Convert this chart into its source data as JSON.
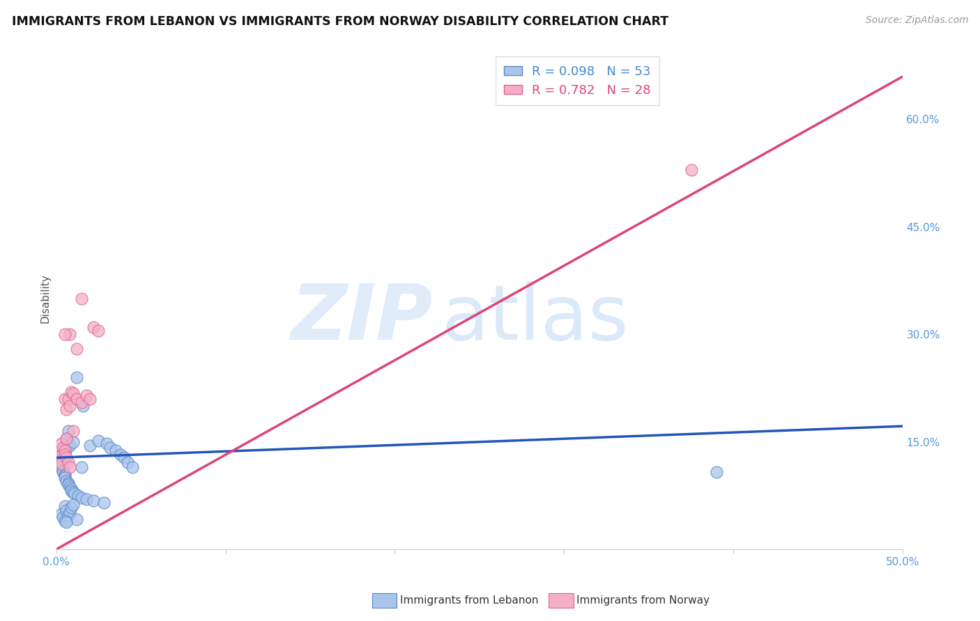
{
  "title": "IMMIGRANTS FROM LEBANON VS IMMIGRANTS FROM NORWAY DISABILITY CORRELATION CHART",
  "source": "Source: ZipAtlas.com",
  "ylabel": "Disability",
  "xlim": [
    0.0,
    0.5
  ],
  "ylim": [
    0.0,
    0.7
  ],
  "xticks": [
    0.0,
    0.1,
    0.2,
    0.3,
    0.4,
    0.5
  ],
  "xticklabels": [
    "0.0%",
    "",
    "",
    "",
    "",
    "50.0%"
  ],
  "yticks_right": [
    0.15,
    0.3,
    0.45,
    0.6
  ],
  "yticklabels_right": [
    "15.0%",
    "30.0%",
    "45.0%",
    "60.0%"
  ],
  "grid_color": "#c8c8c8",
  "background_color": "#ffffff",
  "lebanon_color": "#aac4ea",
  "norway_color": "#f4afc5",
  "lebanon_edge_color": "#5588cc",
  "norway_edge_color": "#e06090",
  "lebanon_line_color": "#2255bb",
  "norway_line_color": "#dd4477",
  "lebanon_R": 0.098,
  "lebanon_N": 53,
  "norway_R": 0.782,
  "norway_N": 28,
  "leb_line_x0": 0.0,
  "leb_line_y0": 0.128,
  "leb_line_x1": 0.5,
  "leb_line_y1": 0.172,
  "nor_line_x0": 0.0,
  "nor_line_y0": 0.0,
  "nor_line_x1": 0.5,
  "nor_line_y1": 0.66,
  "lebanon_scatter_x": [
    0.002,
    0.003,
    0.003,
    0.003,
    0.004,
    0.004,
    0.004,
    0.005,
    0.005,
    0.005,
    0.005,
    0.006,
    0.006,
    0.006,
    0.007,
    0.007,
    0.007,
    0.008,
    0.008,
    0.009,
    0.009,
    0.01,
    0.01,
    0.011,
    0.012,
    0.013,
    0.015,
    0.016,
    0.018,
    0.02,
    0.022,
    0.025,
    0.028,
    0.03,
    0.032,
    0.035,
    0.038,
    0.04,
    0.042,
    0.045,
    0.003,
    0.004,
    0.005,
    0.006,
    0.007,
    0.008,
    0.009,
    0.01,
    0.012,
    0.015,
    0.39,
    0.005,
    0.006
  ],
  "lebanon_scatter_y": [
    0.13,
    0.125,
    0.12,
    0.115,
    0.11,
    0.108,
    0.135,
    0.105,
    0.102,
    0.1,
    0.142,
    0.095,
    0.14,
    0.155,
    0.092,
    0.09,
    0.165,
    0.088,
    0.145,
    0.085,
    0.082,
    0.08,
    0.15,
    0.078,
    0.24,
    0.075,
    0.072,
    0.2,
    0.07,
    0.145,
    0.068,
    0.152,
    0.065,
    0.148,
    0.142,
    0.138,
    0.132,
    0.128,
    0.122,
    0.115,
    0.05,
    0.045,
    0.06,
    0.055,
    0.048,
    0.052,
    0.058,
    0.062,
    0.042,
    0.115,
    0.108,
    0.04,
    0.038
  ],
  "norway_scatter_x": [
    0.002,
    0.003,
    0.003,
    0.004,
    0.005,
    0.005,
    0.005,
    0.006,
    0.006,
    0.007,
    0.007,
    0.008,
    0.008,
    0.009,
    0.01,
    0.01,
    0.012,
    0.015,
    0.018,
    0.02,
    0.022,
    0.025,
    0.015,
    0.012,
    0.008,
    0.005,
    0.375,
    0.006
  ],
  "norway_scatter_y": [
    0.13,
    0.12,
    0.148,
    0.142,
    0.138,
    0.132,
    0.21,
    0.128,
    0.195,
    0.122,
    0.21,
    0.115,
    0.2,
    0.22,
    0.165,
    0.218,
    0.21,
    0.205,
    0.215,
    0.21,
    0.31,
    0.305,
    0.35,
    0.28,
    0.3,
    0.3,
    0.53,
    0.155
  ]
}
